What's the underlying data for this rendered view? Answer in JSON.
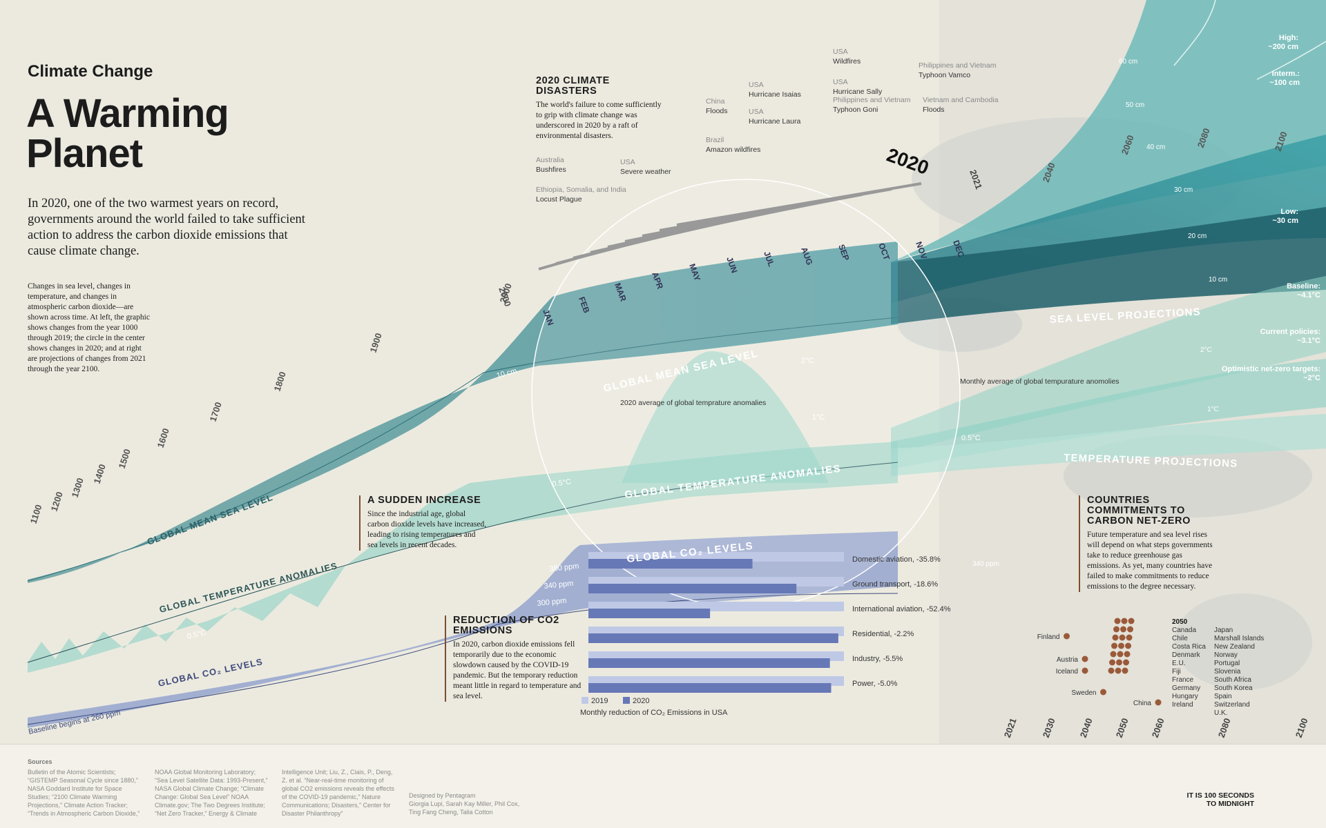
{
  "header": {
    "kicker": "Climate Change",
    "title": "A Warming Planet",
    "intro": "In 2020, one of the two warmest years on record, governments around the world failed to take sufficient action to address the carbon dioxide emissions that cause climate change.",
    "description": "Changes in sea level, changes in temperature, and changes in atmospheric carbon dioxide—are shown across time. At left, the graphic shows changes from the year 1000 through 2019; the circle in the center shows changes in 2020; and at right are projections of changes from 2021 through the year 2100."
  },
  "callouts": {
    "disasters": {
      "title": "2020 CLIMATE DISASTERS",
      "body": "The world's failure to come sufficiently to grip with climate change was underscored in 2020 by a raft of environmental disasters."
    },
    "sudden": {
      "title": "A SUDDEN INCREASE",
      "body": "Since the industrial age, global carbon dioxide levels have increased, leading to rising temperatures and sea levels in recent decades."
    },
    "reduction": {
      "title": "REDUCTION OF CO2 EMISSIONS",
      "body": "In 2020, carbon dioxide emissions fell temporarily due to the economic slowdown caused by the COVID-19 pandemic. But the temporary reduction meant little in regard to temperature and sea level."
    },
    "netzero": {
      "title": "COUNTRIES COMMITMENTS TO CARBON NET-ZERO",
      "body": "Future temperature and sea level rises will depend on what steps governments take to reduce greenhouse gas emissions. As yet, many countries have failed to make commitments to reduce emissions to the degree necessary."
    }
  },
  "colors": {
    "sea": "#2e8a95",
    "sea_dark": "#1f5f6a",
    "temp": "#8fd1c4",
    "temp_light": "#b4e0d4",
    "co2": "#7b8fc9",
    "co2_dark": "#5668ad",
    "accent_brown": "#7a4e2e",
    "dot": "#9a5a3a",
    "bar_2019": "#bfc9e6",
    "bar_2020": "#6678b6"
  },
  "chart_data": [
    {
      "type": "area",
      "title": "Historical (1100–2019)",
      "series": [
        {
          "name": "GLOBAL MEAN SEA LEVEL",
          "x": [
            1100,
            1300,
            1500,
            1700,
            1800,
            1900,
            2000,
            2019
          ],
          "values": [
            0,
            0,
            1,
            2,
            3,
            5,
            10,
            12
          ]
        },
        {
          "name": "GLOBAL TEMPERATURE ANOMALIES",
          "x": [
            1100,
            1300,
            1500,
            1700,
            1800,
            1900,
            2000,
            2019
          ],
          "values": [
            -0.2,
            -0.15,
            -0.2,
            -0.1,
            -0.1,
            0.0,
            0.5,
            0.9
          ]
        },
        {
          "name": "GLOBAL CO₂ LEVELS",
          "x": [
            1100,
            1300,
            1500,
            1700,
            1800,
            1900,
            2000,
            2019
          ],
          "values": [
            260,
            270,
            275,
            278,
            283,
            296,
            370,
            410
          ]
        }
      ],
      "axis_labels": {
        "years": [
          "1100",
          "1200",
          "1300",
          "1400",
          "1500",
          "1600",
          "1700",
          "1800",
          "1900",
          "2000"
        ],
        "sea": [
          "10 cm"
        ],
        "temp": [
          "0.5°C",
          "0.5°C"
        ],
        "co2": [
          "300 ppm",
          "340 ppm",
          "380 ppm"
        ]
      },
      "annotations": [
        "Baseline begins at 260 ppm"
      ]
    },
    {
      "type": "line",
      "title": "2020 (circle)",
      "months": [
        "JAN",
        "FEB",
        "MAR",
        "APR",
        "MAY",
        "JUN",
        "JUL",
        "AUG",
        "SEP",
        "OCT",
        "NOV",
        "DEC"
      ],
      "year_labels": [
        "2020",
        "2021"
      ],
      "temp_ticks": [
        "0.5°C",
        "1°C",
        "2°C"
      ],
      "notes": [
        "2020 average of global temprature anomalies",
        "Monthly average of global tempurature anomolies"
      ],
      "disasters": [
        {
          "place": "Australia",
          "event": "Bushfires"
        },
        {
          "place": "Ethiopia, Somalia, and India",
          "event": "Locust Plague"
        },
        {
          "place": "China",
          "event": "Floods"
        },
        {
          "place": "Brazil",
          "event": "Amazon wildfires"
        },
        {
          "place": "USA",
          "event": "Hurricane Isaias"
        },
        {
          "place": "USA",
          "event": "Hurricane Laura"
        },
        {
          "place": "USA",
          "event": "Severe weather"
        },
        {
          "place": "USA",
          "event": "Wildfires"
        },
        {
          "place": "USA",
          "event": "Hurricane Sally"
        },
        {
          "place": "Philippines and Vietnam",
          "event": "Typhoon Goni"
        },
        {
          "place": "Philippines and Vietnam",
          "event": "Typhoon Vamco"
        },
        {
          "place": "Vietnam and Cambodia",
          "event": "Floods"
        }
      ]
    },
    {
      "type": "bar",
      "title": "Monthly reduction of CO₂ Emissions in USA",
      "legend": [
        "2019",
        "2020"
      ],
      "categories": [
        "Domestic aviation",
        "Ground transport",
        "International aviation",
        "Residential",
        "Industry",
        "Power"
      ],
      "values_change_pct": [
        -35.8,
        -18.6,
        -52.4,
        -2.2,
        -5.5,
        -5.0
      ],
      "labels": [
        "Domestic aviation, -35.8%",
        "Ground transport, -18.6%",
        "International aviation, -52.4%",
        "Residential, -2.2%",
        "Industry, -5.5%",
        "Power, -5.0%"
      ]
    },
    {
      "type": "area",
      "title": "Projections (2021–2100)",
      "year_labels": [
        "2021",
        "2040",
        "2060",
        "2080",
        "2100"
      ],
      "series": [
        {
          "name": "SEA LEVEL PROJECTIONS",
          "scenarios": [
            {
              "name": "High:",
              "value_2100": "~200 cm"
            },
            {
              "name": "Interm.:",
              "value_2100": "~100 cm"
            },
            {
              "name": "Low:",
              "value_2100": "~30 cm"
            }
          ]
        },
        {
          "name": "TEMPERATURE PROJECTIONS",
          "scenarios": [
            {
              "name": "Baseline:",
              "value_2100": "~4.1°C"
            },
            {
              "name": "Current policies:",
              "value_2100": "~3.1°C"
            },
            {
              "name": "Optimistic net-zero targets:",
              "value_2100": "~2°C"
            }
          ]
        }
      ],
      "sea_ticks": [
        "10 cm",
        "20 cm",
        "30 cm",
        "40 cm",
        "50 cm",
        "60 cm"
      ],
      "temp_ticks": [
        "1°C",
        "2°C"
      ],
      "co2_tick": "340 ppm"
    },
    {
      "type": "scatter",
      "title": "Countries commitments to carbon net-zero",
      "x_axis": [
        "2021",
        "2030",
        "2040",
        "2050",
        "2060",
        "2080",
        "2100"
      ],
      "points": [
        {
          "country": "Finland",
          "year": 2035
        },
        {
          "country": "Austria",
          "year": 2040
        },
        {
          "country": "Iceland",
          "year": 2040
        },
        {
          "country": "Sweden",
          "year": 2045
        },
        {
          "country": "China",
          "year": 2060
        }
      ],
      "group_2050": [
        "Canada",
        "Chile",
        "Costa Rica",
        "Denmark",
        "E.U.",
        "Fiji",
        "France",
        "Germany",
        "Hungary",
        "Ireland",
        "Japan",
        "Marshall Islands",
        "New Zealand",
        "Norway",
        "Portugal",
        "Slovenia",
        "South Africa",
        "South Korea",
        "Spain",
        "Switzerland",
        "U.K."
      ],
      "group_2050_label": "2050"
    }
  ],
  "footer": {
    "sources_title": "Sources",
    "sources_cols": [
      [
        "Bulletin of the Atomic Scientists;",
        "“GISTEMP Seasonal Cycle since 1880,”",
        "NASA Goddard Institute for Space",
        "Studies; “2100 Climate Warming",
        "Projections,” Climate Action Tracker;",
        "“Trends in Atmospheric Carbon Dioxide,”"
      ],
      [
        "NOAA Global Monitoring Laboratory;",
        "“Sea Level Satellite Data: 1993-Present,”",
        "NASA Global Climate Change; “Climate",
        "Change: Global Sea Level” NOAA",
        "Climate.gov; The Two Degrees Institute;",
        "“Net Zero Tracker,” Energy & Climate"
      ],
      [
        "Intelligence Unit; Liu, Z., Ciais, P., Deng,",
        "Z. et al. “Near-real-time monitoring of",
        "global CO2 emissions reveals the effects",
        "of the COVID-19 pandemic,” Nature",
        "Communications; Disasters,” Center for",
        "Disaster Philanthropy”"
      ],
      [
        "Designed by Pentagram",
        "Giorgia Lupi, Sarah Kay Miller, Phil Cox,",
        "Ting Fang Cheng, Talia Cotton"
      ]
    ],
    "clock_line1": "IT IS 100 SECONDS",
    "clock_line2": "TO MIDNIGHT"
  }
}
